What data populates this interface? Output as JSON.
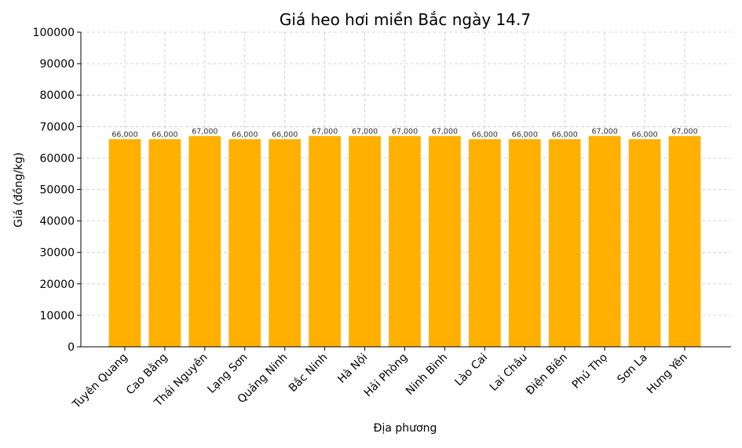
{
  "chart_data": {
    "type": "bar",
    "title": "Giá heo hơi miền Bắc ngày 14.7",
    "xlabel": "Địa phương",
    "ylabel": "Giá (đồng/kg)",
    "ylim": [
      0,
      100000
    ],
    "yticks": [
      0,
      10000,
      20000,
      30000,
      40000,
      50000,
      60000,
      70000,
      80000,
      90000,
      100000
    ],
    "ytick_labels": [
      "0",
      "10000",
      "20000",
      "30000",
      "40000",
      "50000",
      "60000",
      "70000",
      "80000",
      "90000",
      "100000"
    ],
    "grid": true,
    "bar_color": "#FFB000",
    "categories": [
      "Tuyên Quang",
      "Cao Bằng",
      "Thái Nguyên",
      "Lạng Sơn",
      "Quảng Ninh",
      "Bắc Ninh",
      "Hà Nội",
      "Hải Phòng",
      "Ninh Bình",
      "Lào Cai",
      "Lai Châu",
      "Điện Biên",
      "Phú Thọ",
      "Sơn La",
      "Hưng Yên"
    ],
    "values": [
      66000,
      66000,
      67000,
      66000,
      66000,
      67000,
      67000,
      67000,
      67000,
      66000,
      66000,
      66000,
      67000,
      66000,
      67000
    ],
    "data_labels": [
      "66,000",
      "66,000",
      "67,000",
      "66,000",
      "66,000",
      "67,000",
      "67,000",
      "67,000",
      "67,000",
      "66,000",
      "66,000",
      "66,000",
      "67,000",
      "66,000",
      "67,000"
    ]
  }
}
